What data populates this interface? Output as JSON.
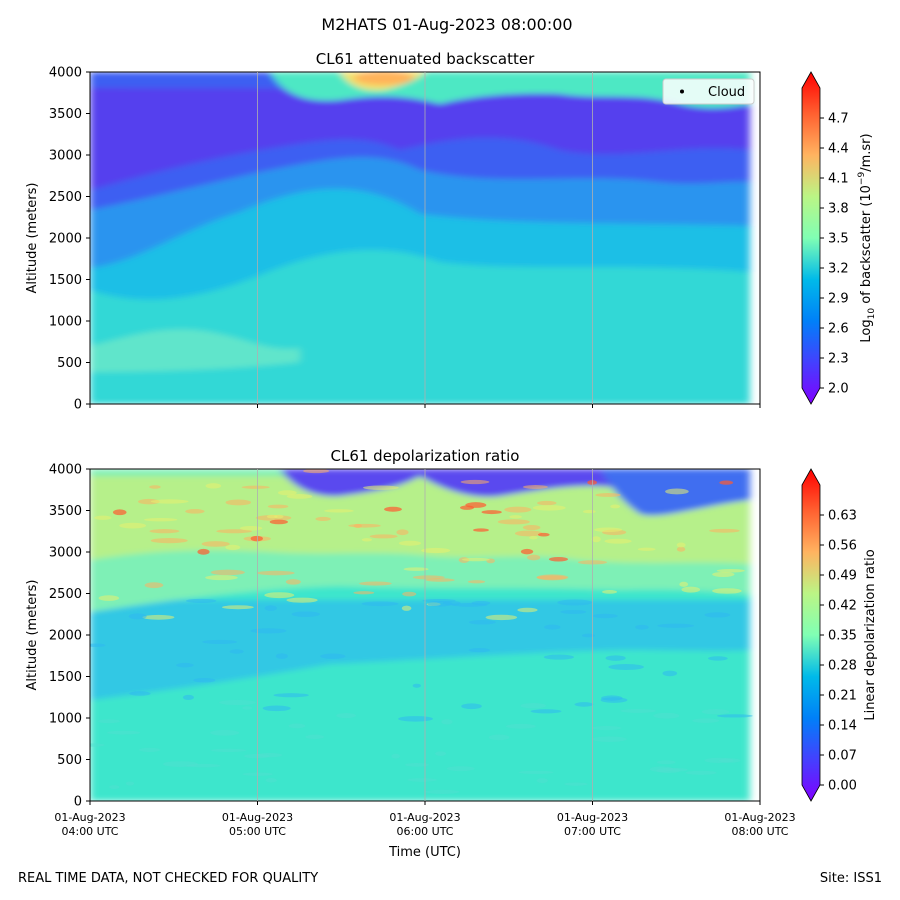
{
  "suptitle": "M2HATS 01-Aug-2023 08:00:00",
  "footer": {
    "left": "REAL TIME DATA, NOT CHECKED FOR QUALITY",
    "right": "Site: ISS1"
  },
  "chart_data": [
    {
      "type": "heatmap",
      "title": "CL61 attenuated backscatter",
      "xlabel": "",
      "ylabel": "Altitude (meters)",
      "ylim": [
        0,
        4000
      ],
      "yticks": [
        0,
        500,
        1000,
        1500,
        2000,
        2500,
        3000,
        3500,
        4000
      ],
      "ytick_labels": [
        "0",
        "500",
        "1000",
        "1500",
        "2000",
        "2500",
        "3000",
        "3500",
        "4000"
      ],
      "xlim_hours": [
        4,
        8
      ],
      "xticks_hours": [
        4,
        5,
        6,
        7,
        8
      ],
      "xtick_labels": [],
      "grid": "vertical",
      "legend": {
        "entries": [
          "Cloud"
        ],
        "placement": "top-right"
      },
      "colorbar": {
        "label_prefix": "Log",
        "label_sub": "10",
        "label_mid": " of backscatter (10",
        "label_sup": "−9",
        "label_suffix": "/m.sr)",
        "range": [
          2.0,
          5.0
        ],
        "ticks": [
          2.0,
          2.3,
          2.6,
          2.9,
          3.2,
          3.5,
          3.8,
          4.1,
          4.4,
          4.7
        ],
        "tick_labels": [
          "2.0",
          "2.3",
          "2.6",
          "2.9",
          "3.2",
          "3.5",
          "3.8",
          "4.1",
          "4.4",
          "4.7"
        ],
        "extend": "both",
        "colormap": "rainbow"
      },
      "field_description": "Values roughly 2.9–3.0 below 1000 m, decreasing with height to ~2.2–2.5 between 2500 and 3500 m; elevated values up to ~4.0 near 3800–4000 m around 04:55–06:00 UTC"
    },
    {
      "type": "heatmap",
      "title": "CL61 depolarization ratio",
      "xlabel": "Time (UTC)",
      "ylabel": "Altitude (meters)",
      "ylim": [
        0,
        4000
      ],
      "yticks": [
        0,
        500,
        1000,
        1500,
        2000,
        2500,
        3000,
        3500,
        4000
      ],
      "ytick_labels": [
        "0",
        "500",
        "1000",
        "1500",
        "2000",
        "2500",
        "3000",
        "3500",
        "4000"
      ],
      "xlim_hours": [
        4,
        8
      ],
      "xticks_hours": [
        4,
        5,
        6,
        7,
        8
      ],
      "xtick_labels": [
        [
          "01-Aug-2023",
          "04:00 UTC"
        ],
        [
          "01-Aug-2023",
          "05:00 UTC"
        ],
        [
          "01-Aug-2023",
          "06:00 UTC"
        ],
        [
          "01-Aug-2023",
          "07:00 UTC"
        ],
        [
          "01-Aug-2023",
          "08:00 UTC"
        ]
      ],
      "grid": "vertical",
      "colorbar": {
        "label": "Linear depolarization ratio",
        "range": [
          0.0,
          0.7
        ],
        "ticks": [
          0.0,
          0.07,
          0.14,
          0.21,
          0.28,
          0.35,
          0.42,
          0.49,
          0.56,
          0.63
        ],
        "tick_labels": [
          "0.00",
          "0.07",
          "0.14",
          "0.21",
          "0.28",
          "0.35",
          "0.42",
          "0.49",
          "0.56",
          "0.63"
        ],
        "extend": "both",
        "colormap": "rainbow"
      },
      "field_description": "Values ~0.25–0.3 below 2000 m, ~0.2 banding 1400–2200 m, increasing to 0.35–0.6 between 2600 and 3900 m; low values (~0.0–0.1) near the top at 3800–4000 m"
    }
  ]
}
